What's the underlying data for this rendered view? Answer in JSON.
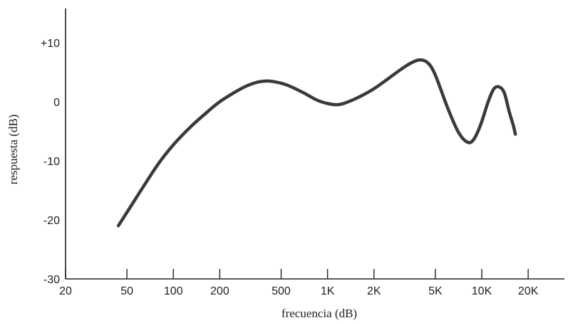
{
  "chart_data": {
    "type": "line",
    "title": "",
    "xlabel": "frecuencia (dB)",
    "ylabel": "respuesta (dB)",
    "x_scale": "log",
    "xlim": [
      20,
      30000
    ],
    "ylim": [
      -30,
      15
    ],
    "x_ticks": [
      {
        "value": 20,
        "label": "20"
      },
      {
        "value": 50,
        "label": "50"
      },
      {
        "value": 100,
        "label": "100"
      },
      {
        "value": 200,
        "label": "200"
      },
      {
        "value": 500,
        "label": "500"
      },
      {
        "value": 1000,
        "label": "1K"
      },
      {
        "value": 2000,
        "label": "2K"
      },
      {
        "value": 5000,
        "label": "5K"
      },
      {
        "value": 10000,
        "label": "10K"
      },
      {
        "value": 20000,
        "label": "20K"
      }
    ],
    "y_ticks": [
      {
        "value": 10,
        "label": "+10"
      },
      {
        "value": 0,
        "label": "0"
      },
      {
        "value": -10,
        "label": "-10"
      },
      {
        "value": -20,
        "label": "-20"
      },
      {
        "value": -30,
        "label": "-30"
      }
    ],
    "grid": false,
    "series": [
      {
        "name": "",
        "color": "#3a3a3a",
        "points": [
          [
            44,
            -21
          ],
          [
            60,
            -15.5
          ],
          [
            80,
            -10.5
          ],
          [
            100,
            -7.3
          ],
          [
            130,
            -4.2
          ],
          [
            170,
            -1.5
          ],
          [
            200,
            0
          ],
          [
            250,
            1.6
          ],
          [
            300,
            2.7
          ],
          [
            350,
            3.3
          ],
          [
            400,
            3.5
          ],
          [
            450,
            3.4
          ],
          [
            550,
            2.8
          ],
          [
            700,
            1.5
          ],
          [
            850,
            0.3
          ],
          [
            1000,
            -0.3
          ],
          [
            1150,
            -0.5
          ],
          [
            1300,
            -0.2
          ],
          [
            1600,
            0.8
          ],
          [
            2000,
            2.2
          ],
          [
            2500,
            4
          ],
          [
            3000,
            5.5
          ],
          [
            3500,
            6.6
          ],
          [
            4000,
            7.1
          ],
          [
            4500,
            6.5
          ],
          [
            5000,
            4.5
          ],
          [
            6000,
            -1
          ],
          [
            7000,
            -5
          ],
          [
            8000,
            -6.8
          ],
          [
            8800,
            -6.5
          ],
          [
            9800,
            -4
          ],
          [
            11000,
            0
          ],
          [
            12000,
            2.2
          ],
          [
            13000,
            2.5
          ],
          [
            14000,
            1.5
          ],
          [
            15000,
            -1.5
          ],
          [
            16000,
            -4
          ],
          [
            16500,
            -5.5
          ]
        ]
      }
    ]
  }
}
